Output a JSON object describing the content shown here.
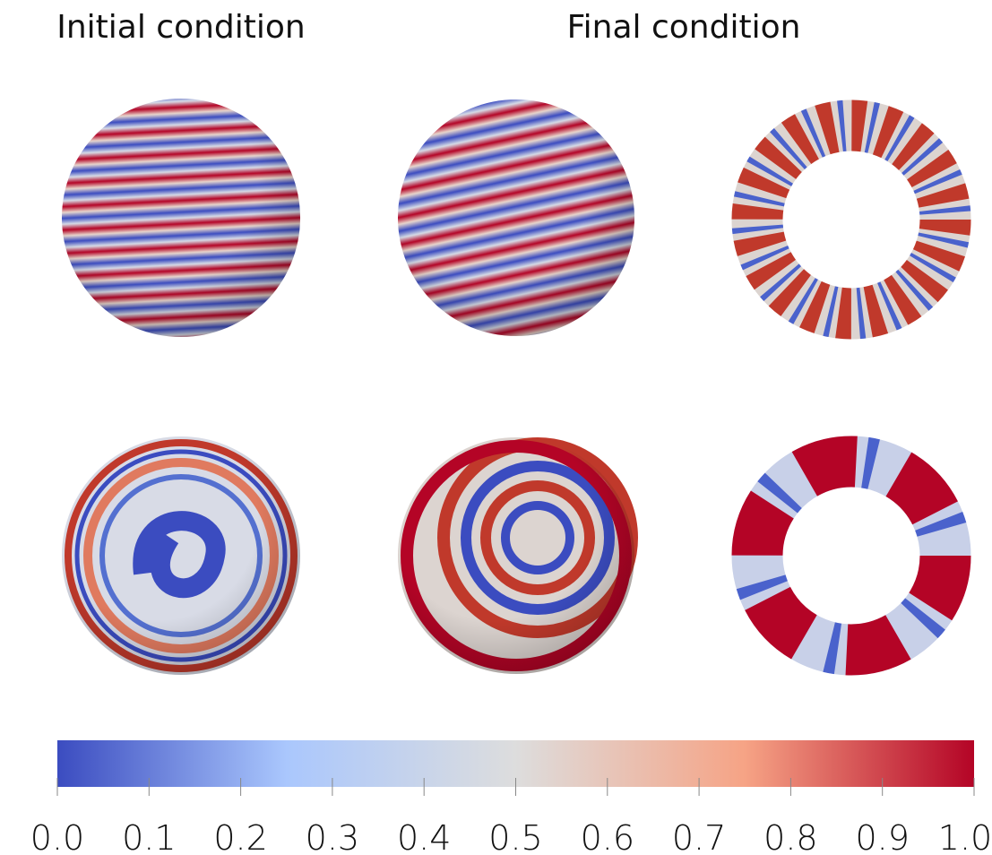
{
  "headers": {
    "initial": "Initial condition",
    "final": "Final condition"
  },
  "colorbar": {
    "lim": [
      0,
      1
    ],
    "ticks": [
      {
        "value": 0,
        "label": "0.0"
      },
      0.1,
      0.2,
      0.3,
      0.4,
      0.5,
      0.6,
      0.7,
      0.8,
      0.9,
      {
        "value": 1,
        "label": "1.0"
      }
    ],
    "colors": [
      "#3b4cc0",
      "#aac7fd",
      "#dddddd",
      "#f6a385",
      "#b40426"
    ]
  }
}
